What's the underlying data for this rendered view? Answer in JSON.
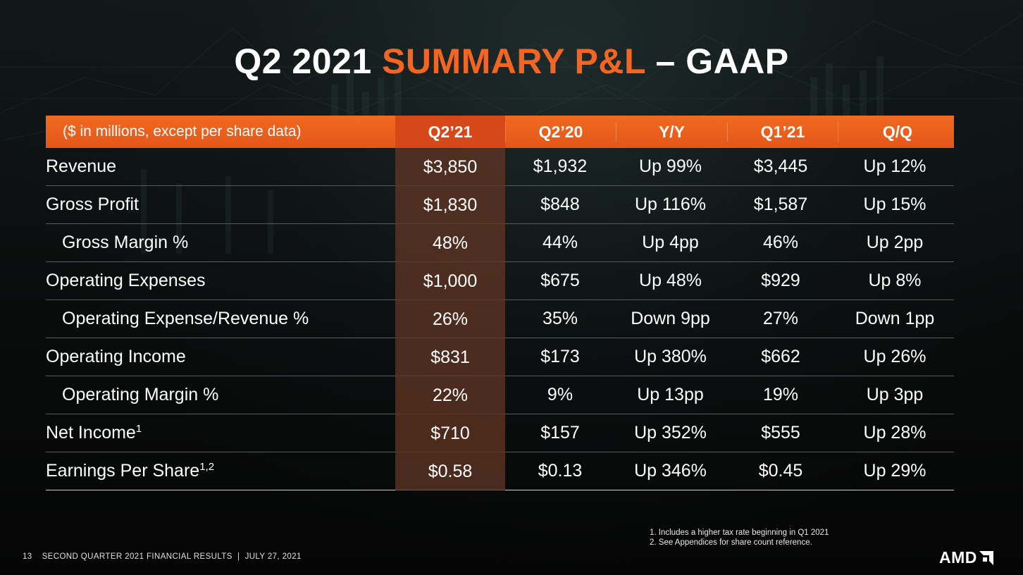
{
  "title": {
    "part1": "Q2 2021 ",
    "part2": "SUMMARY P&L",
    "part3": " – GAAP"
  },
  "table": {
    "headers": [
      "($ in millions, except per share data)",
      "Q2’21",
      "Q2’20",
      "Y/Y",
      "Q1’21",
      "Q/Q"
    ],
    "rows": [
      {
        "label": "Revenue",
        "sup": "",
        "values": [
          "$3,850",
          "$1,932",
          "Up 99%",
          "$3,445",
          "Up 12%"
        ]
      },
      {
        "label": "Gross Profit",
        "sup": "",
        "values": [
          "$1,830",
          "$848",
          "Up 116%",
          "$1,587",
          "Up 15%"
        ]
      },
      {
        "label": "Gross Margin %",
        "sup": "",
        "values": [
          "48%",
          "44%",
          "Up 4pp",
          "46%",
          "Up 2pp"
        ]
      },
      {
        "label": "Operating Expenses",
        "sup": "",
        "values": [
          "$1,000",
          "$675",
          "Up 48%",
          "$929",
          "Up 8%"
        ]
      },
      {
        "label": "Operating Expense/Revenue %",
        "sup": "",
        "values": [
          "26%",
          "35%",
          "Down 9pp",
          "27%",
          "Down 1pp"
        ]
      },
      {
        "label": "Operating Income",
        "sup": "",
        "values": [
          "$831",
          "$173",
          "Up 380%",
          "$662",
          "Up 26%"
        ]
      },
      {
        "label": "Operating Margin %",
        "sup": "",
        "values": [
          "22%",
          "9%",
          "Up 13pp",
          "19%",
          "Up 3pp"
        ]
      },
      {
        "label": "Net Income",
        "sup": "1",
        "values": [
          "$710",
          "$157",
          "Up 352%",
          "$555",
          "Up 28%"
        ]
      },
      {
        "label": "Earnings Per Share",
        "sup": "1,2",
        "values": [
          "$0.58",
          "$0.13",
          "Up 346%",
          "$0.45",
          "Up 29%"
        ]
      }
    ]
  },
  "footnotes": [
    "1. Includes a higher tax rate beginning in Q1 2021",
    "2. See Appendices for share count reference."
  ],
  "footer": {
    "page": "13",
    "text": "SECOND QUARTER 2021 FINANCIAL RESULTS  |  JULY 27, 2021"
  },
  "logo": {
    "text": "AMD",
    "icon": "amd-arrow-icon"
  },
  "colors": {
    "accent": "#f26522",
    "header_bg": "#e65a1b",
    "highlight_col": "#5f3422",
    "background": "#0b0b0b"
  }
}
